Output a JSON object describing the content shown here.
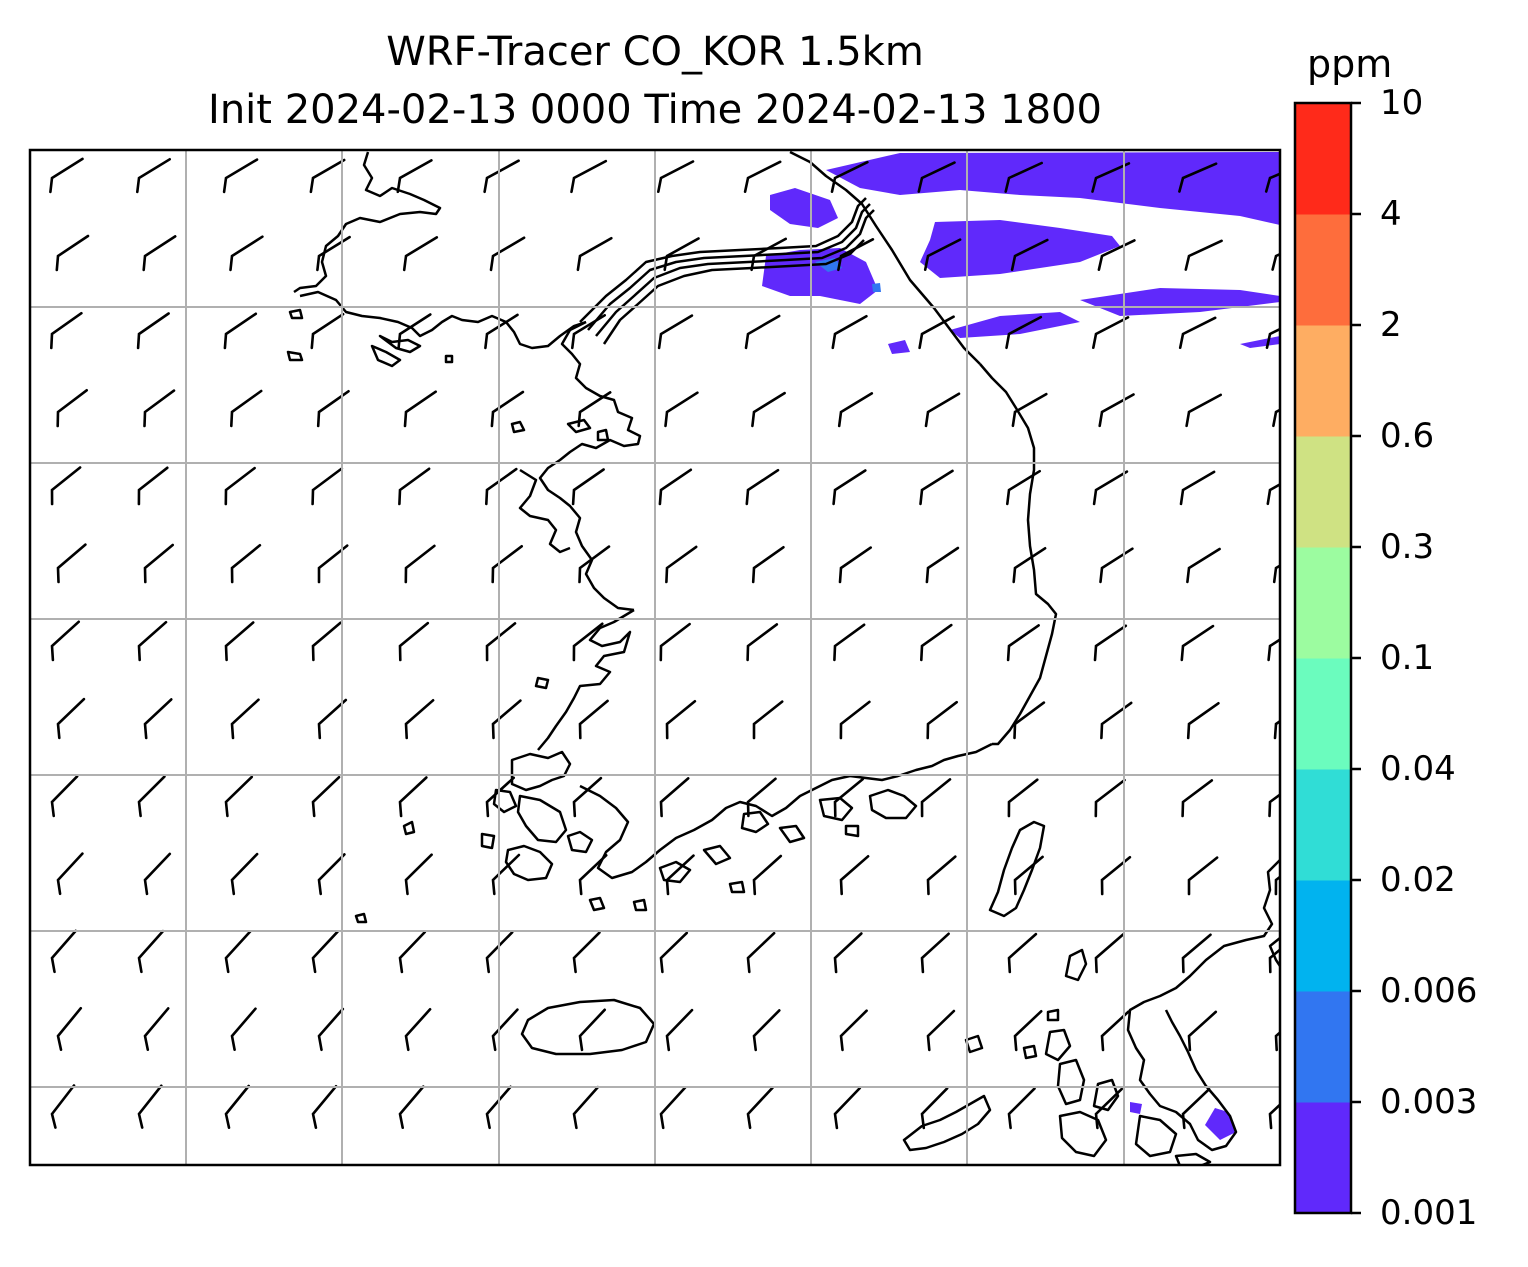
{
  "title": {
    "line1": "WRF-Tracer CO_KOR 1.5km",
    "line2": "Init 2024-02-13 0000 Time 2024-02-13 1800"
  },
  "colorbar": {
    "unit": "ppm",
    "levels": [
      "0.001",
      "0.003",
      "0.006",
      "0.02",
      "0.04",
      "0.1",
      "0.3",
      "0.6",
      "2",
      "4",
      "10"
    ],
    "colors": [
      "#6029fb",
      "#3176f1",
      "#01b3ef",
      "#30ddd6",
      "#6bfcbe",
      "#9cfca0",
      "#cfe283",
      "#fead62",
      "#fe6d3c",
      "#ff2a1a"
    ]
  },
  "map": {
    "plume_color": "#6029fb",
    "coast_color": "#000000",
    "grid_color": "#b0b0b0",
    "wind_barb_icon": "wind-barb-icon"
  }
}
